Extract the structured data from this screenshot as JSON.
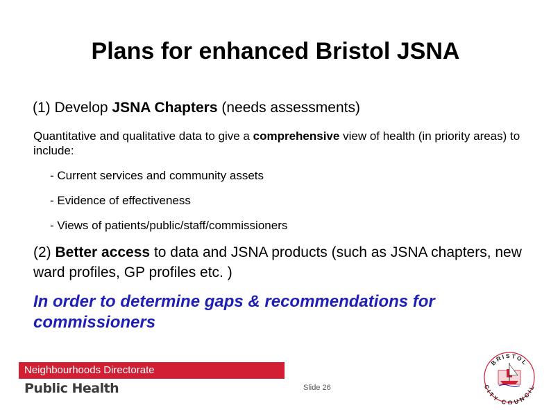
{
  "title": "Plans for enhanced Bristol JSNA",
  "point1": {
    "number": "(1)",
    "lead": "Develop",
    "bold": "JSNA Chapters",
    "tail": "(needs assessments)"
  },
  "point1_detail": {
    "pre": "Quantitative and qualitative data to give a",
    "bold": "comprehensive",
    "post": "view of health (in priority areas) to include:"
  },
  "bullets": [
    "- Current services and community assets",
    "- Evidence of effectiveness",
    "- Views of patients/public/staff/commissioners"
  ],
  "point2": {
    "number": "(2)",
    "bold": "Better access",
    "post": "to data and JSNA products (such as JSNA chapters, new ward profiles, GP profiles etc. )"
  },
  "conclusion": "In order to determine gaps & recommendations for commissioners",
  "footer": {
    "directorate": "Neighbourhoods Directorate",
    "department": "Public Health",
    "slide_label": "Slide 26"
  },
  "logo": {
    "top_text": "BRISTOL",
    "bottom_text": "CITY COUNCIL",
    "accent_color": "#d21f34"
  }
}
